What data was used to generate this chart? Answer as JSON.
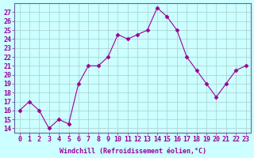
{
  "x": [
    0,
    1,
    2,
    3,
    4,
    5,
    6,
    7,
    8,
    9,
    10,
    11,
    12,
    13,
    14,
    15,
    16,
    17,
    18,
    19,
    20,
    21,
    22,
    23
  ],
  "y": [
    16,
    17,
    16,
    14,
    15,
    14.5,
    19,
    21,
    21,
    22,
    24.5,
    24,
    24.5,
    25,
    27.5,
    26.5,
    25,
    22,
    20.5,
    19,
    17.5,
    19,
    20.5,
    21
  ],
  "line_color": "#990099",
  "marker": "D",
  "marker_size": 2.5,
  "bg_color": "#ccffff",
  "grid_color": "#aacccc",
  "xlabel": "Windchill (Refroidissement éolien,°C)",
  "tick_color": "#990099",
  "yticks": [
    14,
    15,
    16,
    17,
    18,
    19,
    20,
    21,
    22,
    23,
    24,
    25,
    26,
    27
  ],
  "xticks": [
    0,
    1,
    2,
    3,
    4,
    5,
    6,
    7,
    8,
    9,
    10,
    11,
    12,
    13,
    14,
    15,
    16,
    17,
    18,
    19,
    20,
    21,
    22,
    23
  ],
  "axis_color": "#666699",
  "font_size": 6.0
}
